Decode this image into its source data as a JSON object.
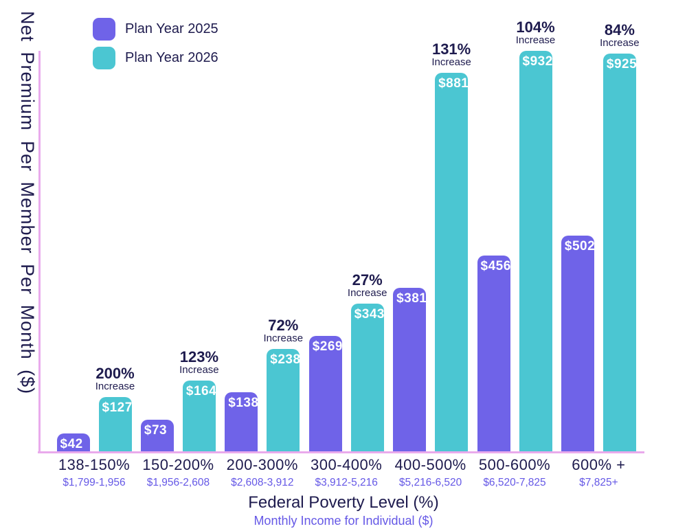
{
  "colors": {
    "purple_bar": "#6f63e8",
    "teal_bar": "#4bc6d2",
    "navy_text": "#1e1b4e",
    "purple_text": "#6558e6",
    "axis_line": "#e9aaec",
    "background": "#ffffff"
  },
  "legend": {
    "items": [
      {
        "label": "Plan Year 2025",
        "color": "#6f63e8"
      },
      {
        "label": "Plan Year 2026",
        "color": "#4bc6d2"
      }
    ]
  },
  "chart_data": {
    "type": "bar",
    "title": "",
    "ylabel": "Net Premium Per Member Per Month ($)",
    "xlabel": "Federal Poverty Level (%)",
    "xlabel_sub": "Monthly Income for Individual ($)",
    "ylim": [
      0,
      932
    ],
    "grid": false,
    "legend_position": "top-left",
    "categories": [
      "138-150%",
      "150-200%",
      "200-300%",
      "300-400%",
      "400-500%",
      "500-600%",
      "600% +"
    ],
    "income_labels": [
      "$1,799-1,956",
      "$1,956-2,608",
      "$2,608-3,912",
      "$3,912-5,216",
      "$5,216-6,520",
      "$6,520-7,825",
      "$7,825+"
    ],
    "series": [
      {
        "name": "Plan Year 2025",
        "values": [
          42,
          73,
          138,
          269,
          381,
          456,
          502
        ],
        "labels": [
          "$42",
          "$73",
          "$138",
          "$269",
          "$381",
          "$456",
          "$502"
        ]
      },
      {
        "name": "Plan Year 2026",
        "values": [
          127,
          164,
          238,
          343,
          881,
          932,
          925
        ],
        "labels": [
          "$127",
          "$164",
          "$238",
          "$343",
          "$881",
          "$932",
          "$925"
        ]
      }
    ],
    "increase_labels": [
      "200%",
      "123%",
      "72%",
      "27%",
      "131%",
      "104%",
      "84%"
    ],
    "increase_word": "Increase"
  }
}
